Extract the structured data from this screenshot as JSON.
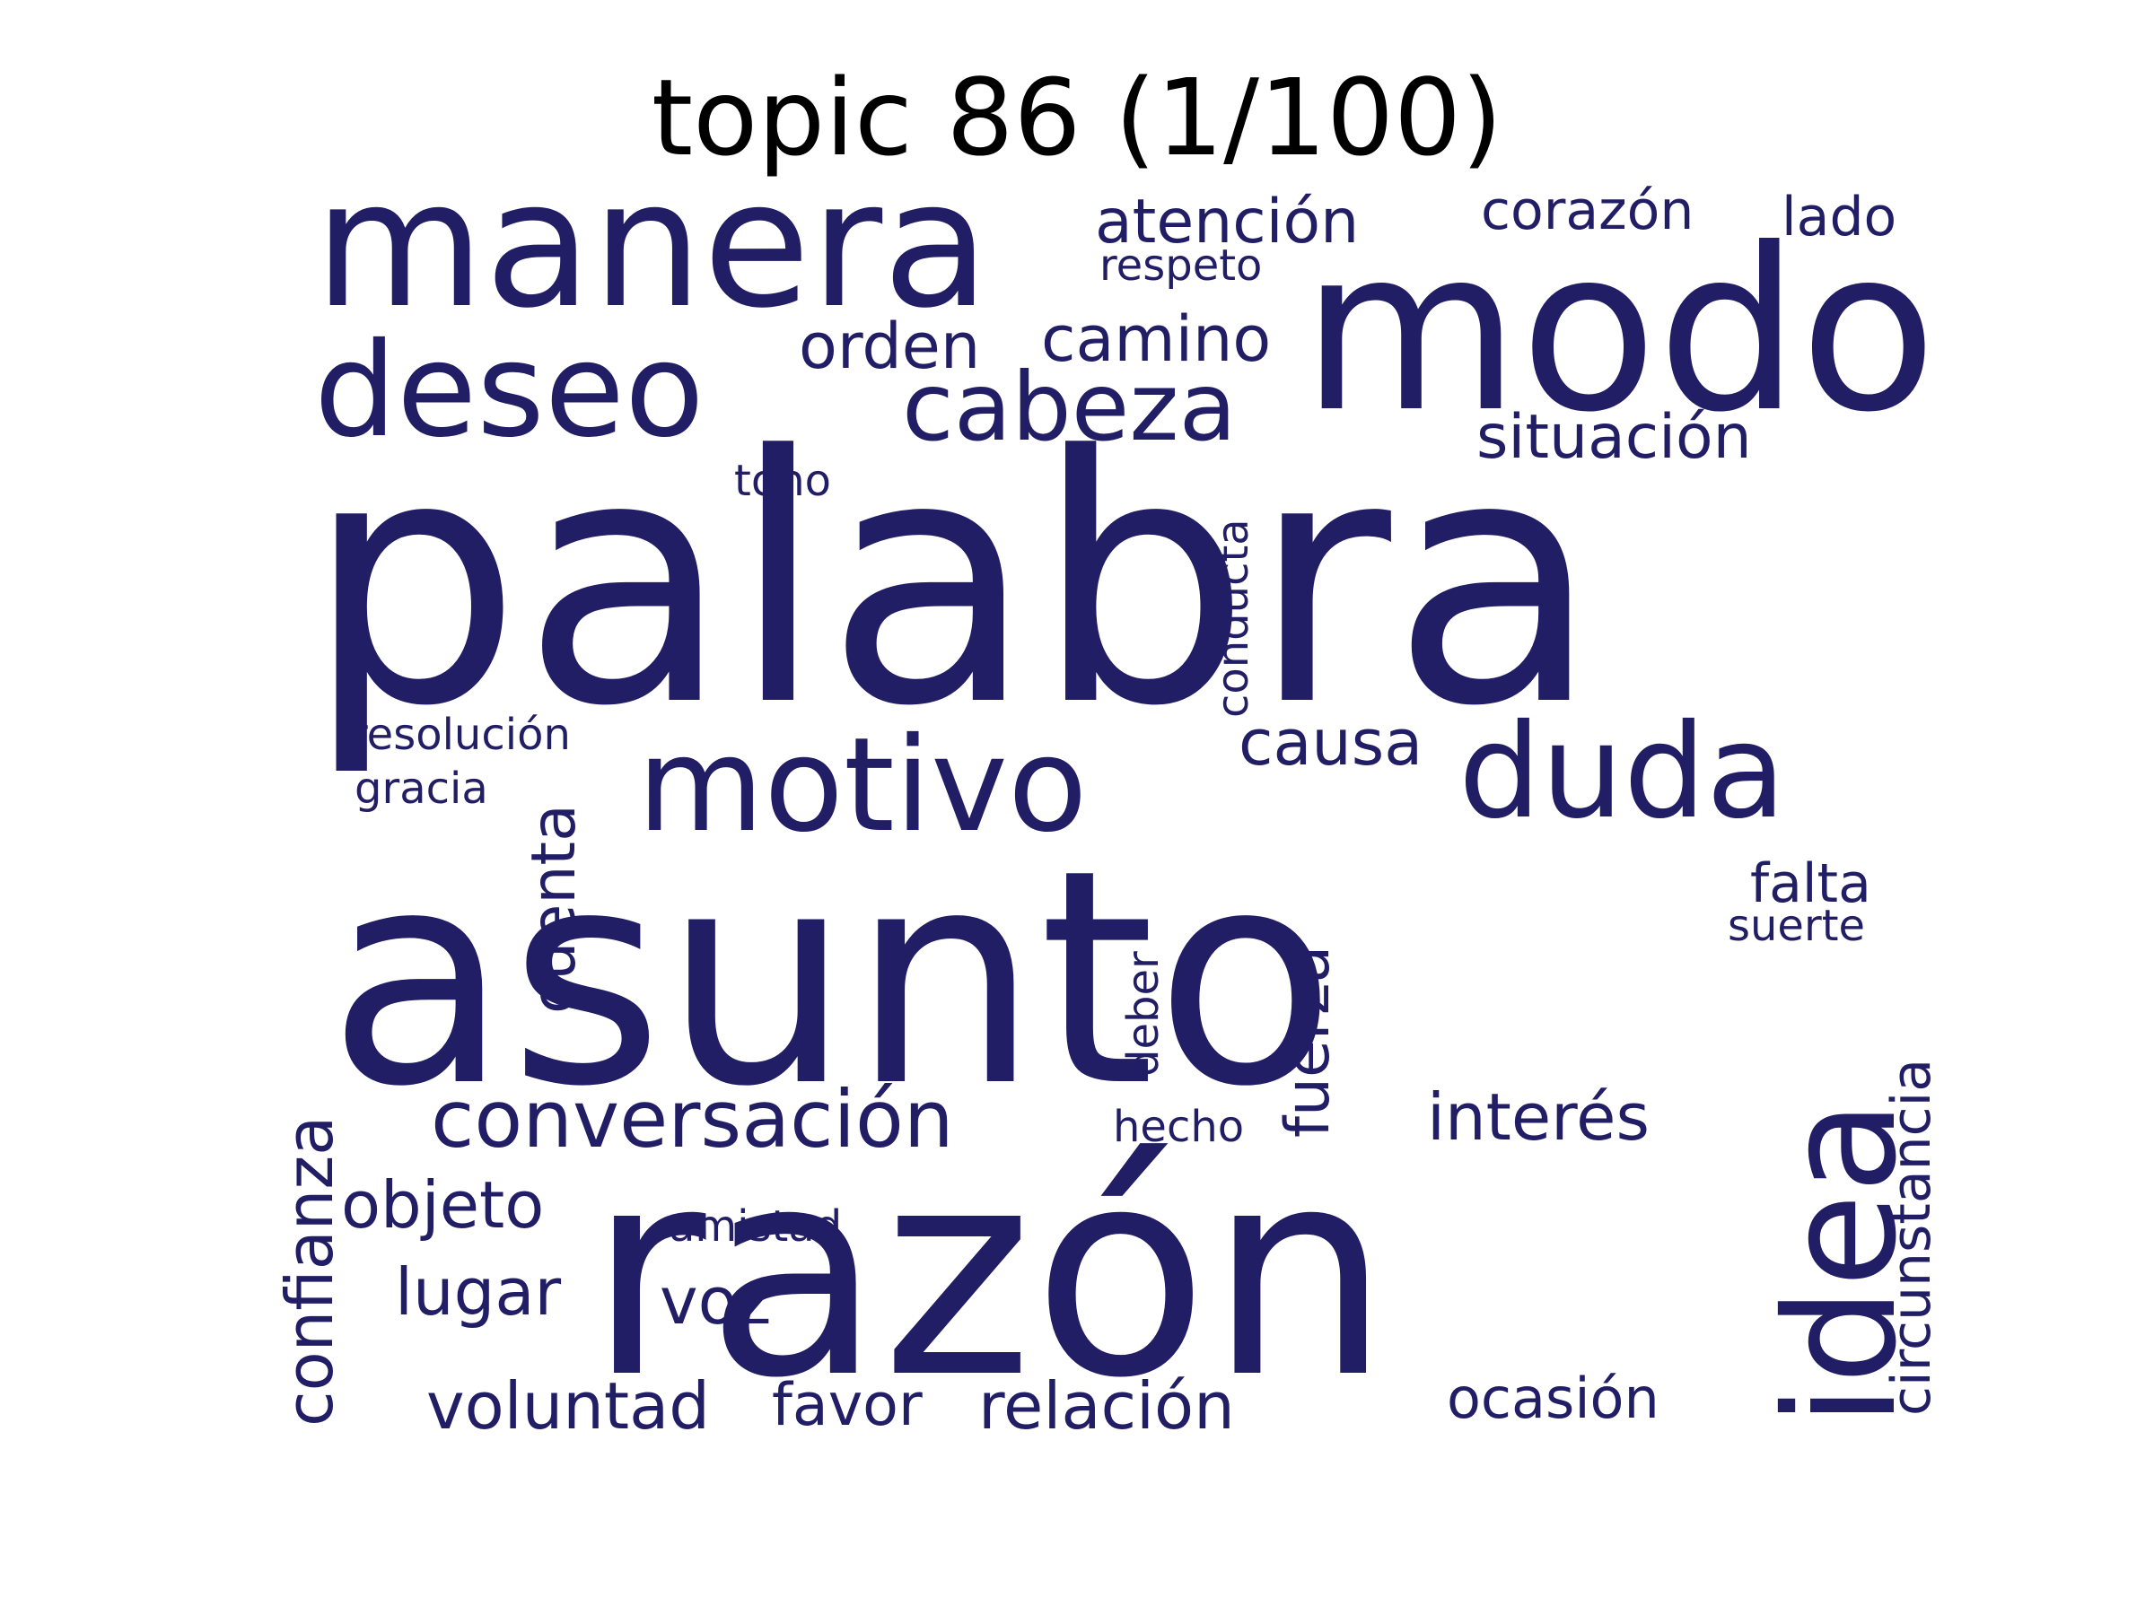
{
  "title": "topic 86 (1/100)",
  "colors": {
    "background": "#ffffff",
    "word": "#221e66",
    "title": "#000000"
  },
  "words": [
    {
      "key": "palabra",
      "text": "palabra"
    },
    {
      "key": "asunto",
      "text": "asunto"
    },
    {
      "key": "razon",
      "text": "razón"
    },
    {
      "key": "modo",
      "text": "modo"
    },
    {
      "key": "manera",
      "text": "manera"
    },
    {
      "key": "deseo",
      "text": "deseo"
    },
    {
      "key": "motivo",
      "text": "motivo"
    },
    {
      "key": "duda",
      "text": "duda"
    },
    {
      "key": "idea",
      "text": "idea"
    },
    {
      "key": "cabeza",
      "text": "cabeza"
    },
    {
      "key": "conversacion",
      "text": "conversación"
    },
    {
      "key": "atencion",
      "text": "atención"
    },
    {
      "key": "camino",
      "text": "camino"
    },
    {
      "key": "orden",
      "text": "orden"
    },
    {
      "key": "situacion",
      "text": "situación"
    },
    {
      "key": "corazon",
      "text": "corazón"
    },
    {
      "key": "lado",
      "text": "lado"
    },
    {
      "key": "respeto",
      "text": "respeto"
    },
    {
      "key": "tono",
      "text": "tono"
    },
    {
      "key": "conducta",
      "text": "conducta"
    },
    {
      "key": "causa",
      "text": "causa"
    },
    {
      "key": "resolucion",
      "text": "resolución"
    },
    {
      "key": "gracia",
      "text": "gracia"
    },
    {
      "key": "cuenta",
      "text": "cuenta"
    },
    {
      "key": "falta",
      "text": "falta"
    },
    {
      "key": "suerte",
      "text": "suerte"
    },
    {
      "key": "fuerza",
      "text": "fuerza"
    },
    {
      "key": "deber",
      "text": "deber"
    },
    {
      "key": "hecho",
      "text": "hecho"
    },
    {
      "key": "interes",
      "text": "interés"
    },
    {
      "key": "circunstancia",
      "text": "circunstancia"
    },
    {
      "key": "confianza",
      "text": "confianza"
    },
    {
      "key": "objeto",
      "text": "objeto"
    },
    {
      "key": "amistad",
      "text": "amistad"
    },
    {
      "key": "lugar",
      "text": "lugar"
    },
    {
      "key": "voz",
      "text": "voz"
    },
    {
      "key": "voluntad",
      "text": "voluntad"
    },
    {
      "key": "favor",
      "text": "favor"
    },
    {
      "key": "relacion",
      "text": "relación"
    },
    {
      "key": "ocasion",
      "text": "ocasión"
    }
  ]
}
